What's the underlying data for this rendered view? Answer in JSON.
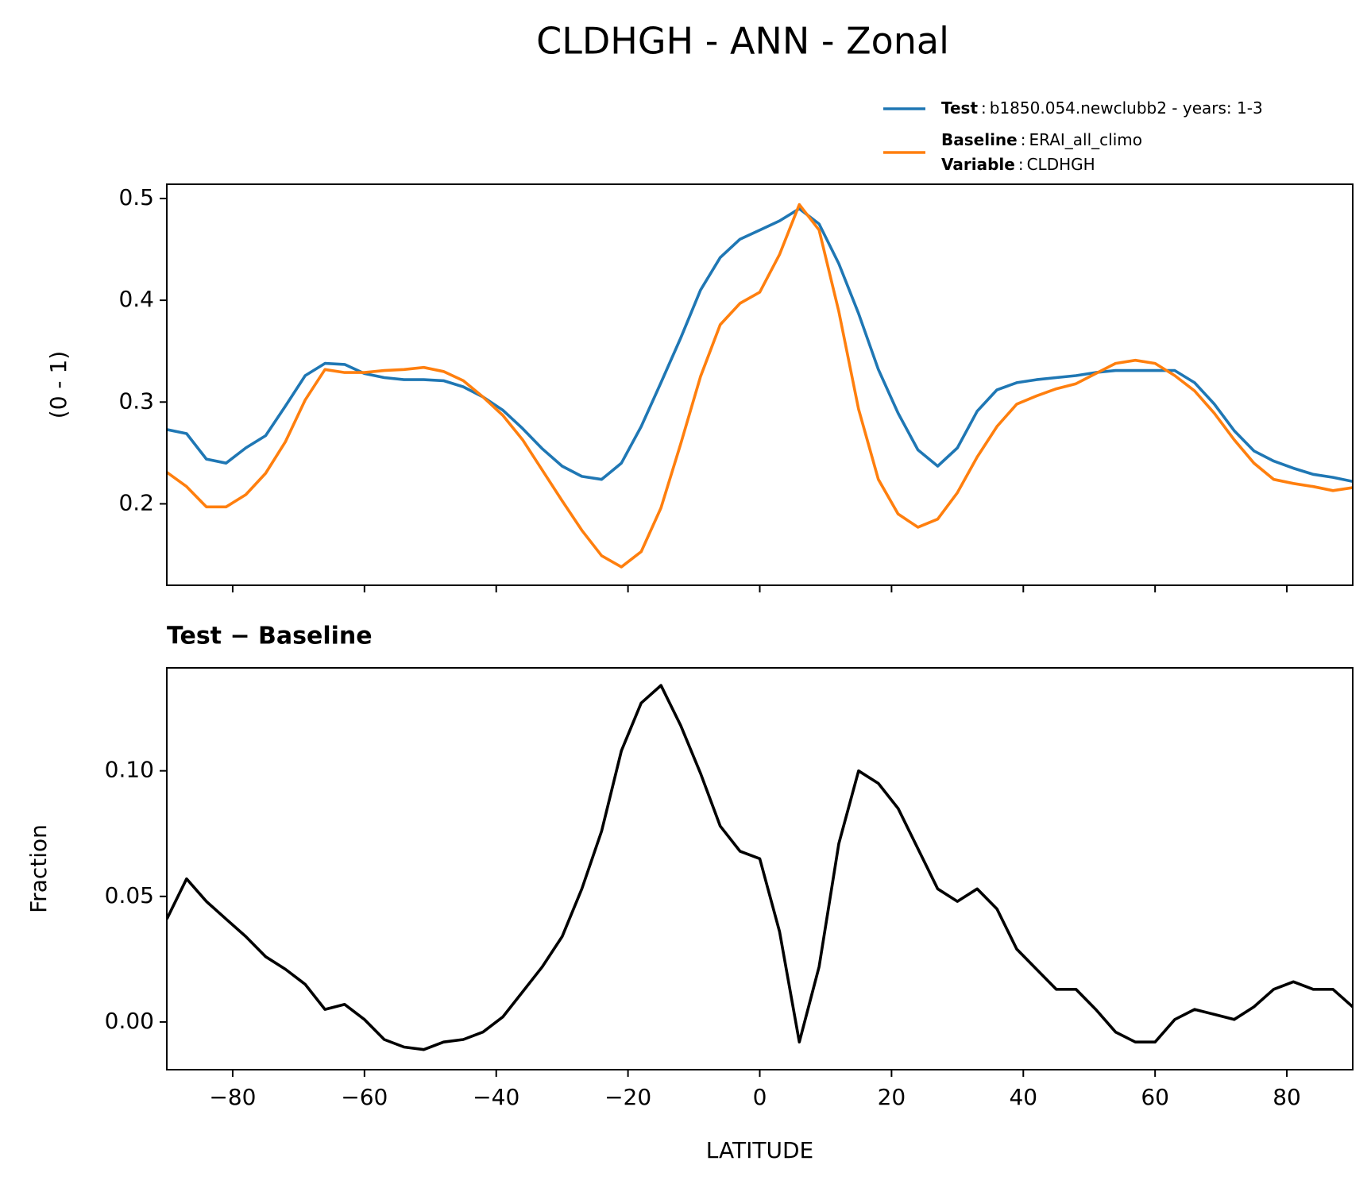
{
  "chart_data": [
    {
      "type": "line",
      "title": "CLDHGH - ANN - Zonal",
      "ylabel": "(0 - 1)",
      "x": [
        -90,
        -87,
        -84,
        -81,
        -78,
        -75,
        -72,
        -69,
        -66,
        -63,
        -60,
        -57,
        -54,
        -51,
        -48,
        -45,
        -42,
        -39,
        -36,
        -33,
        -30,
        -27,
        -24,
        -21,
        -18,
        -15,
        -12,
        -9,
        -6,
        -3,
        0,
        3,
        6,
        9,
        12,
        15,
        18,
        21,
        24,
        27,
        30,
        33,
        36,
        39,
        42,
        45,
        48,
        51,
        54,
        57,
        60,
        63,
        66,
        69,
        72,
        75,
        78,
        81,
        84,
        87,
        90
      ],
      "xlim": [
        -90,
        90
      ],
      "xticks": [
        -80,
        -60,
        -40,
        -20,
        0,
        20,
        40,
        60,
        80
      ],
      "ylim": [
        0.12,
        0.514
      ],
      "yticks": [
        0.2,
        0.3,
        0.4,
        0.5
      ],
      "separator": ":",
      "series": [
        {
          "name": "Test",
          "description": "b1850.054.newclubb2 - years: 1-3",
          "color": "#1f77b4",
          "values": [
            0.273,
            0.269,
            0.244,
            0.24,
            0.255,
            0.267,
            0.296,
            0.326,
            0.338,
            0.337,
            0.328,
            0.324,
            0.322,
            0.322,
            0.321,
            0.315,
            0.305,
            0.292,
            0.274,
            0.254,
            0.237,
            0.227,
            0.224,
            0.24,
            0.276,
            0.319,
            0.363,
            0.41,
            0.442,
            0.46,
            0.469,
            0.478,
            0.49,
            0.475,
            0.436,
            0.387,
            0.332,
            0.289,
            0.253,
            0.237,
            0.255,
            0.291,
            0.312,
            0.319,
            0.322,
            0.324,
            0.326,
            0.329,
            0.331,
            0.331,
            0.331,
            0.331,
            0.319,
            0.298,
            0.272,
            0.252,
            0.242,
            0.235,
            0.229,
            0.226,
            0.222
          ]
        },
        {
          "name": "Baseline",
          "description": "ERAI_all_climo",
          "color": "#ff7f0e",
          "values": [
            0.231,
            0.217,
            0.197,
            0.197,
            0.209,
            0.23,
            0.261,
            0.302,
            0.332,
            0.329,
            0.329,
            0.331,
            0.332,
            0.334,
            0.33,
            0.321,
            0.305,
            0.287,
            0.263,
            0.233,
            0.203,
            0.174,
            0.149,
            0.138,
            0.153,
            0.196,
            0.259,
            0.325,
            0.376,
            0.397,
            0.408,
            0.445,
            0.494,
            0.469,
            0.389,
            0.293,
            0.224,
            0.19,
            0.177,
            0.185,
            0.211,
            0.246,
            0.276,
            0.298,
            0.306,
            0.313,
            0.318,
            0.328,
            0.338,
            0.341,
            0.338,
            0.326,
            0.311,
            0.289,
            0.263,
            0.24,
            0.224,
            0.22,
            0.217,
            0.213,
            0.216
          ]
        }
      ],
      "legend_extra": {
        "name": "Variable",
        "description": "CLDHGH"
      }
    },
    {
      "type": "line",
      "title": "Test − Baseline",
      "ylabel": "Fraction",
      "xlabel": "LATITUDE",
      "x": [
        -90,
        -87,
        -84,
        -81,
        -78,
        -75,
        -72,
        -69,
        -66,
        -63,
        -60,
        -57,
        -54,
        -51,
        -48,
        -45,
        -42,
        -39,
        -36,
        -33,
        -30,
        -27,
        -24,
        -21,
        -18,
        -15,
        -12,
        -9,
        -6,
        -3,
        0,
        3,
        6,
        9,
        12,
        15,
        18,
        21,
        24,
        27,
        30,
        33,
        36,
        39,
        42,
        45,
        48,
        51,
        54,
        57,
        60,
        63,
        66,
        69,
        72,
        75,
        78,
        81,
        84,
        87,
        90
      ],
      "xlim": [
        -90,
        90
      ],
      "xticks": [
        {
          "value": -80,
          "label": "−80"
        },
        {
          "value": -60,
          "label": "−60"
        },
        {
          "value": -40,
          "label": "−40"
        },
        {
          "value": -20,
          "label": "−20"
        },
        0,
        20,
        40,
        60,
        80
      ],
      "ylim": [
        -0.019,
        0.141
      ],
      "yticks": [
        {
          "value": 0,
          "label": "0.00"
        },
        {
          "value": 0.05,
          "label": "0.05"
        },
        {
          "value": 0.1,
          "label": "0.10"
        }
      ],
      "series": [
        {
          "color": "#000000",
          "values": [
            0.041,
            0.057,
            0.048,
            0.041,
            0.034,
            0.026,
            0.021,
            0.015,
            0.005,
            0.007,
            0.001,
            -0.007,
            -0.01,
            -0.011,
            -0.008,
            -0.007,
            -0.004,
            0.002,
            0.012,
            0.022,
            0.034,
            0.053,
            0.076,
            0.108,
            0.127,
            0.134,
            0.118,
            0.099,
            0.078,
            0.068,
            0.065,
            0.036,
            -0.008,
            0.022,
            0.071,
            0.1,
            0.095,
            0.085,
            0.069,
            0.053,
            0.048,
            0.053,
            0.045,
            0.029,
            0.021,
            0.013,
            0.013,
            0.005,
            -0.004,
            -0.008,
            -0.008,
            0.001,
            0.005,
            0.003,
            0.001,
            0.006,
            0.013,
            0.016,
            0.013,
            0.013,
            0.006
          ]
        }
      ]
    }
  ]
}
